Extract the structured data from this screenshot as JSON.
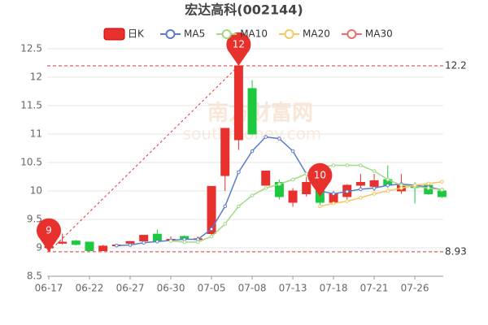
{
  "chart_data": {
    "type": "candlestick",
    "title": "宏达高科(002144)",
    "watermark": "南方财富网",
    "watermark_url": "southmoney.com",
    "candle_name": "日K",
    "up_color": "#e8302d",
    "down_color": "#1dc93f",
    "categories": [
      "06-17",
      null,
      null,
      "06-22",
      null,
      null,
      "06-27",
      null,
      null,
      "06-30",
      null,
      null,
      "07-05",
      null,
      null,
      "07-08",
      null,
      null,
      "07-13",
      null,
      null,
      "07-18",
      null,
      null,
      "07-21",
      null,
      null,
      "07-26",
      null,
      null
    ],
    "open": [
      9.0,
      9.08,
      9.12,
      9.1,
      8.95,
      9.04,
      9.08,
      9.12,
      9.24,
      9.14,
      9.2,
      9.15,
      9.25,
      10.27,
      10.9,
      11.8,
      10.1,
      10.15,
      9.8,
      9.95,
      10.1,
      9.8,
      9.9,
      10.1,
      10.08,
      10.2,
      10.0,
      10.08,
      10.1,
      10.0
    ],
    "high": [
      9.05,
      9.25,
      9.14,
      9.1,
      9.05,
      9.06,
      9.12,
      9.22,
      9.32,
      9.2,
      9.22,
      9.2,
      10.08,
      11.1,
      12.2,
      11.95,
      10.35,
      10.2,
      10.05,
      10.25,
      10.15,
      10.0,
      10.12,
      10.3,
      10.3,
      10.45,
      10.3,
      10.15,
      10.12,
      10.0
    ],
    "low": [
      8.93,
      9.06,
      9.04,
      8.95,
      8.95,
      9.03,
      9.06,
      9.1,
      9.08,
      9.1,
      9.14,
      9.1,
      9.2,
      10.0,
      10.72,
      11.0,
      10.1,
      9.85,
      9.72,
      9.9,
      9.75,
      9.75,
      9.85,
      10.05,
      10.0,
      10.05,
      9.95,
      9.78,
      9.93,
      9.88
    ],
    "close": [
      9.02,
      9.1,
      9.06,
      8.95,
      9.03,
      9.05,
      9.11,
      9.22,
      9.12,
      9.15,
      9.16,
      9.16,
      10.08,
      11.1,
      12.2,
      11.0,
      10.35,
      9.9,
      10.0,
      10.15,
      9.8,
      9.95,
      10.1,
      10.15,
      10.18,
      10.1,
      10.1,
      10.06,
      9.95,
      9.9
    ],
    "series": [
      {
        "name": "MA5",
        "color": "#5b7bc8",
        "values": [
          null,
          null,
          null,
          null,
          null,
          9.04,
          9.05,
          9.09,
          9.11,
          9.13,
          9.15,
          9.15,
          9.33,
          9.73,
          10.33,
          10.7,
          10.95,
          10.92,
          10.7,
          10.3,
          10.0,
          9.95,
          9.99,
          10.03,
          10.05,
          10.1,
          10.12,
          10.1,
          10.07,
          10.02
        ]
      },
      {
        "name": "MA10",
        "color": "#a5d884",
        "values": [
          null,
          null,
          null,
          null,
          null,
          null,
          null,
          null,
          null,
          9.12,
          9.1,
          9.1,
          9.2,
          9.42,
          9.73,
          9.92,
          10.05,
          10.12,
          10.2,
          10.3,
          10.42,
          10.45,
          10.45,
          10.45,
          10.35,
          10.2,
          10.1,
          10.08,
          10.05,
          10.02
        ]
      },
      {
        "name": "MA20",
        "color": "#f5c860",
        "values": [
          null,
          null,
          null,
          null,
          null,
          null,
          null,
          null,
          null,
          null,
          null,
          null,
          null,
          null,
          null,
          null,
          null,
          null,
          null,
          null,
          9.73,
          9.78,
          9.82,
          9.88,
          9.95,
          10.0,
          10.05,
          10.1,
          10.13,
          10.16
        ]
      },
      {
        "name": "MA30",
        "color": "#ee6b6b",
        "values": [
          null,
          null,
          null,
          null,
          null,
          null,
          null,
          null,
          null,
          null,
          null,
          null,
          null,
          null,
          null,
          null,
          null,
          null,
          null,
          null,
          null,
          null,
          null,
          null,
          null,
          null,
          null,
          null,
          null,
          null
        ]
      }
    ],
    "ylim": [
      8.5,
      12.5
    ],
    "yticks": [
      8.5,
      9,
      9.5,
      10,
      10.5,
      11,
      11.5,
      12,
      12.5
    ],
    "grid": true,
    "mark_lines": [
      12.2,
      8.93
    ],
    "pins": [
      {
        "label": "12",
        "index": 14,
        "value": 12.2
      },
      {
        "label": "9",
        "index": 0,
        "value": 8.93
      },
      {
        "label": "10",
        "index": 20,
        "value": 9.9
      }
    ]
  }
}
